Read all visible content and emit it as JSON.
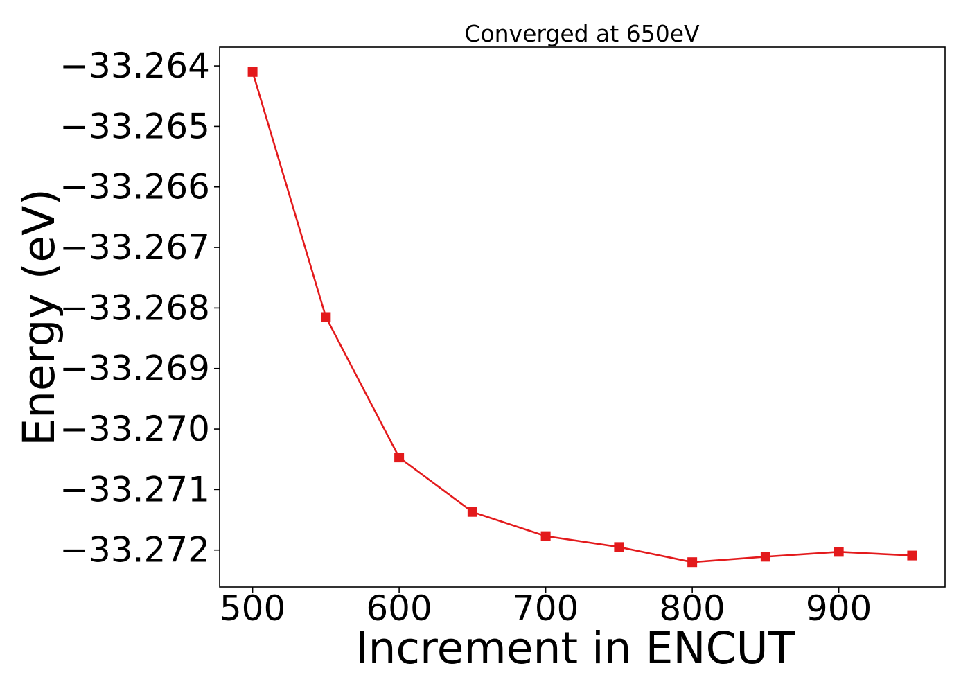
{
  "chart_data": {
    "type": "line",
    "title": "Converged at 650eV",
    "xlabel": "Increment in ENCUT",
    "ylabel": "Energy (eV)",
    "x": [
      500,
      550,
      600,
      650,
      700,
      750,
      800,
      850,
      900,
      950
    ],
    "series": [
      {
        "values": [
          -33.2641,
          -33.26815,
          -33.27047,
          -33.27137,
          -33.27177,
          -33.27195,
          -33.2722,
          -33.27211,
          -33.27203,
          -33.27209
        ],
        "color": "#e31a1c",
        "marker": "square"
      }
    ],
    "xlim": [
      477.5,
      972.5
    ],
    "ylim": [
      -33.27261,
      -33.26369
    ],
    "xticks": [
      500,
      600,
      700,
      800,
      900
    ],
    "xtick_labels": [
      "500",
      "600",
      "700",
      "800",
      "900"
    ],
    "yticks": [
      -33.264,
      -33.265,
      -33.266,
      -33.267,
      -33.268,
      -33.269,
      -33.27,
      -33.271,
      -33.272
    ],
    "ytick_labels": [
      "−33.264",
      "−33.265",
      "−33.266",
      "−33.267",
      "−33.268",
      "−33.269",
      "−33.270",
      "−33.271",
      "−33.272"
    ],
    "grid": false,
    "legend": "none"
  }
}
